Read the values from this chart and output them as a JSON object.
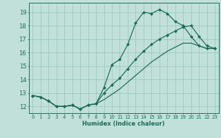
{
  "title": "",
  "xlabel": "Humidex (Indice chaleur)",
  "xlim": [
    -0.5,
    23.5
  ],
  "ylim": [
    11.5,
    19.7
  ],
  "xticks": [
    0,
    1,
    2,
    3,
    4,
    5,
    6,
    7,
    8,
    9,
    10,
    11,
    12,
    13,
    14,
    15,
    16,
    17,
    18,
    19,
    20,
    21,
    22,
    23
  ],
  "yticks": [
    12,
    13,
    14,
    15,
    16,
    17,
    18,
    19
  ],
  "background_color": "#c2e0da",
  "grid_color": "#9dccc4",
  "line_color": "#1a6b5a",
  "line1_x": [
    0,
    1,
    2,
    3,
    4,
    5,
    6,
    7,
    8,
    9,
    10,
    11,
    12,
    13,
    14,
    15,
    16,
    17,
    18,
    19,
    20,
    21,
    22,
    23
  ],
  "line1_y": [
    12.8,
    12.7,
    12.4,
    12.0,
    12.0,
    12.1,
    11.8,
    12.1,
    12.2,
    13.4,
    15.1,
    15.5,
    16.6,
    18.2,
    19.0,
    18.9,
    19.2,
    18.9,
    18.3,
    18.0,
    17.2,
    16.5,
    16.3,
    16.3
  ],
  "line2_x": [
    0,
    1,
    2,
    3,
    4,
    5,
    6,
    7,
    8,
    9,
    10,
    11,
    12,
    13,
    14,
    15,
    16,
    17,
    18,
    19,
    20,
    21,
    22,
    23
  ],
  "line2_y": [
    12.8,
    12.7,
    12.4,
    12.0,
    12.0,
    12.1,
    11.8,
    12.1,
    12.2,
    13.0,
    13.6,
    14.1,
    14.8,
    15.5,
    16.1,
    16.6,
    17.0,
    17.3,
    17.6,
    17.9,
    18.0,
    17.2,
    16.5,
    16.3
  ],
  "line3_x": [
    0,
    1,
    2,
    3,
    4,
    5,
    6,
    7,
    8,
    9,
    10,
    11,
    12,
    13,
    14,
    15,
    16,
    17,
    18,
    19,
    20,
    21,
    22,
    23
  ],
  "line3_y": [
    12.8,
    12.7,
    12.4,
    12.0,
    12.0,
    12.1,
    11.8,
    12.1,
    12.2,
    12.5,
    12.9,
    13.3,
    13.8,
    14.3,
    14.8,
    15.3,
    15.7,
    16.1,
    16.4,
    16.7,
    16.7,
    16.5,
    16.3,
    16.3
  ]
}
